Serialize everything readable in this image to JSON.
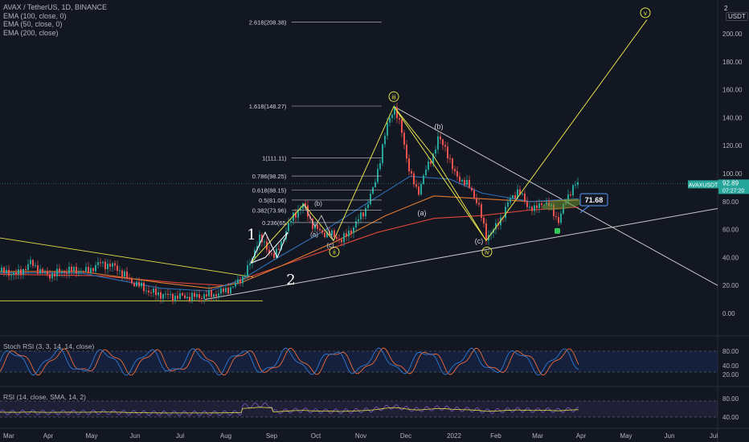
{
  "header": {
    "symbol": "AVAX / TetherUS, 1D, BINANCE",
    "indicators": [
      "EMA (100, close, 0)",
      "EMA (50, close, 0)",
      "EMA (200, close)"
    ],
    "unit_number": "2",
    "unit": "USDT"
  },
  "panes": {
    "stoch_label": "Stoch RSI (3, 3, 14, 14, close)",
    "rsi_label": "RSI (14, close, SMA, 14, 2)"
  },
  "colors": {
    "background": "#131722",
    "up": "#26a69a",
    "down": "#ef5350",
    "ema100": "#e07a2f",
    "ema50": "#2f6fb8",
    "ema200": "#e0463a",
    "annotation": "#e6e14a",
    "trendline": "#c8c8c8",
    "price_tag": "#26a69a",
    "stoch_k": "#2f7bd6",
    "stoch_d": "#ef6c3a",
    "rsi": "#7e57c2",
    "rsi_ma": "#e6e14a"
  },
  "chart_data": {
    "type": "candlestick",
    "price_axis": {
      "range": [
        -10,
        220
      ],
      "ticks": [
        "0.00",
        "20.00",
        "40.00",
        "60.00",
        "80.00",
        "100.00",
        "120.00",
        "140.00",
        "160.00",
        "180.00",
        "200.00"
      ]
    },
    "time_axis": [
      "Mar",
      "Apr",
      "May",
      "Jun",
      "Jul",
      "Aug",
      "Sep",
      "Oct",
      "Nov",
      "Dec",
      "2022",
      "Feb",
      "Mar",
      "Apr",
      "May",
      "Jun",
      "Jul"
    ],
    "price_path": [
      [
        0,
        30
      ],
      [
        22,
        28
      ],
      [
        38,
        36
      ],
      [
        58,
        27
      ],
      [
        85,
        31
      ],
      [
        108,
        30
      ],
      [
        125,
        36
      ],
      [
        145,
        33
      ],
      [
        160,
        24
      ],
      [
        188,
        15
      ],
      [
        215,
        12
      ],
      [
        245,
        12
      ],
      [
        270,
        14
      ],
      [
        290,
        19
      ],
      [
        302,
        26
      ],
      [
        312,
        36
      ],
      [
        322,
        55
      ],
      [
        330,
        48
      ],
      [
        342,
        40
      ],
      [
        355,
        58
      ],
      [
        365,
        70
      ],
      [
        378,
        78
      ],
      [
        390,
        62
      ],
      [
        400,
        58
      ],
      [
        415,
        56
      ],
      [
        425,
        52
      ],
      [
        440,
        62
      ],
      [
        455,
        75
      ],
      [
        465,
        90
      ],
      [
        472,
        108
      ],
      [
        482,
        135
      ],
      [
        490,
        148
      ],
      [
        500,
        130
      ],
      [
        510,
        100
      ],
      [
        520,
        86
      ],
      [
        528,
        100
      ],
      [
        538,
        112
      ],
      [
        545,
        125
      ],
      [
        555,
        118
      ],
      [
        565,
        100
      ],
      [
        575,
        95
      ],
      [
        585,
        90
      ],
      [
        595,
        78
      ],
      [
        605,
        55
      ],
      [
        615,
        60
      ],
      [
        625,
        70
      ],
      [
        635,
        82
      ],
      [
        645,
        88
      ],
      [
        655,
        78
      ],
      [
        665,
        74
      ],
      [
        675,
        80
      ],
      [
        685,
        76
      ],
      [
        695,
        66
      ],
      [
        705,
        82
      ],
      [
        712,
        90
      ],
      [
        720,
        93
      ]
    ],
    "ema100": [
      [
        0,
        30
      ],
      [
        100,
        30
      ],
      [
        200,
        22
      ],
      [
        260,
        18
      ],
      [
        300,
        22
      ],
      [
        350,
        34
      ],
      [
        420,
        52
      ],
      [
        480,
        70
      ],
      [
        540,
        84
      ],
      [
        600,
        82
      ],
      [
        660,
        80
      ],
      [
        720,
        81
      ]
    ],
    "ema50": [
      [
        0,
        29
      ],
      [
        100,
        29
      ],
      [
        200,
        18
      ],
      [
        260,
        16
      ],
      [
        300,
        24
      ],
      [
        340,
        38
      ],
      [
        400,
        58
      ],
      [
        460,
        80
      ],
      [
        510,
        98
      ],
      [
        560,
        96
      ],
      [
        600,
        86
      ],
      [
        660,
        80
      ],
      [
        720,
        82
      ]
    ],
    "ema200": [
      [
        0,
        28
      ],
      [
        120,
        27
      ],
      [
        220,
        22
      ],
      [
        280,
        20
      ],
      [
        330,
        30
      ],
      [
        400,
        44
      ],
      [
        470,
        58
      ],
      [
        540,
        68
      ],
      [
        600,
        70
      ],
      [
        660,
        74
      ],
      [
        720,
        76
      ]
    ],
    "fibonacci": [
      {
        "label": "0.236(65.",
        "value": 65
      },
      {
        "label": "0.382(73.96)",
        "value": 73.96
      },
      {
        "label": "0.5(81.06)",
        "value": 81.06
      },
      {
        "label": "0.618(88.15)",
        "value": 88.15
      },
      {
        "label": "0.786(98.25)",
        "value": 98.25
      },
      {
        "label": "1(111.11)",
        "value": 111.11
      },
      {
        "label": "1.618(148.27)",
        "value": 148.27
      },
      {
        "label": "2.618(208.38)",
        "value": 208.38
      }
    ],
    "annotations": [
      "iii",
      "v",
      "ii",
      "iv",
      "(b)",
      "(a)",
      "(c)",
      "(b)",
      "(a)",
      "(c)",
      "1",
      "2"
    ],
    "current_price": "92.89",
    "countdown": "07:27:20",
    "symbol_tag": "AVAXUSDT",
    "target_label": "71.68",
    "stoch_rsi_axis": [
      "80.00",
      "40.00",
      "20.00"
    ],
    "rsi_axis": [
      "80.00",
      "40.00"
    ],
    "grid": false
  }
}
